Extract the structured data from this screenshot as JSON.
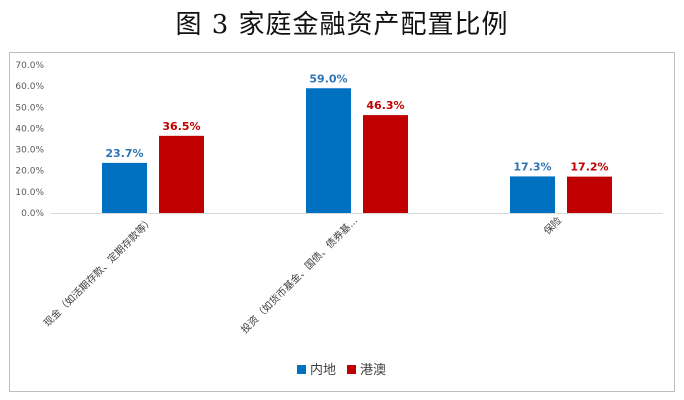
{
  "page_title": "图 3 家庭金融资产配置比例",
  "chart_data": {
    "type": "bar",
    "categories": [
      "现金（如活期存款、定期存款等）",
      "投资（如货币基金、国债、债券基...",
      "保险"
    ],
    "series": [
      {
        "name": "内地",
        "values": [
          23.7,
          59.0,
          17.3
        ],
        "labels": [
          "23.7%",
          "59.0%",
          "17.3%"
        ],
        "color": "#0070C0",
        "label_color": "#2E75B6"
      },
      {
        "name": "港澳",
        "values": [
          36.5,
          46.3,
          17.2
        ],
        "labels": [
          "36.5%",
          "46.3%",
          "17.2%"
        ],
        "color": "#C00000",
        "label_color": "#C00000"
      }
    ],
    "yticks": [
      "0.0%",
      "10.0%",
      "20.0%",
      "30.0%",
      "40.0%",
      "50.0%",
      "60.0%",
      "70.0%"
    ],
    "ylim": [
      0,
      70
    ],
    "grid": false,
    "legend": "bottom",
    "title": "",
    "xlabel": "",
    "ylabel": ""
  }
}
